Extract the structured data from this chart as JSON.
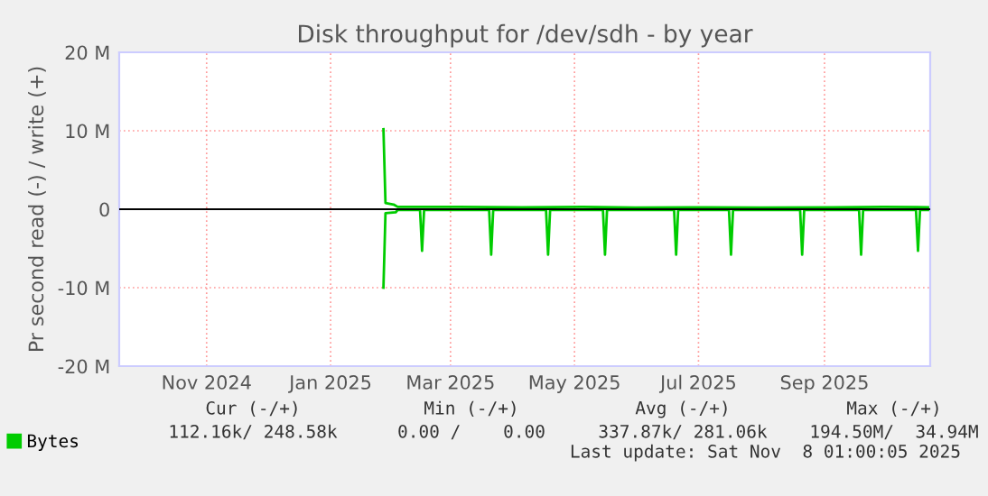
{
  "chart_data": {
    "type": "line",
    "title": "Disk throughput for /dev/sdh - by year",
    "ylabel": "Pr second read (-) / write (+)",
    "xlim": [
      "2024-10-04",
      "2025-11-07"
    ],
    "xticks": [
      {
        "value": "2024-11-16",
        "label": "Nov 2024"
      },
      {
        "value": "2025-01-16",
        "label": "Jan 2025"
      },
      {
        "value": "2025-03-16",
        "label": "Mar 2025"
      },
      {
        "value": "2025-05-16",
        "label": "May 2025"
      },
      {
        "value": "2025-07-16",
        "label": "Jul 2025"
      },
      {
        "value": "2025-09-16",
        "label": "Sep 2025"
      }
    ],
    "ylim": [
      -20000000,
      20000000
    ],
    "yticks": [
      {
        "value": -20000000,
        "label": "-20 M"
      },
      {
        "value": -10000000,
        "label": "-10 M"
      },
      0,
      {
        "value": 10000000,
        "label": "10 M"
      },
      {
        "value": 20000000,
        "label": "20 M"
      }
    ],
    "series": [
      {
        "name": "Bytes",
        "color": "#00cc00",
        "x": [
          "2025-02-11",
          "2025-02-12",
          "2025-02-16",
          "2025-02-18",
          "2025-03-15",
          "2025-04-20",
          "2025-05-20",
          "2025-06-15",
          "2025-07-20",
          "2025-08-15",
          "2025-09-20",
          "2025-10-15",
          "2025-11-07"
        ],
        "values": [
          10200000,
          800000,
          600000,
          300000,
          300000,
          250000,
          300000,
          200000,
          250000,
          200000,
          250000,
          300000,
          250000
        ]
      },
      {
        "color": "#00cc00",
        "x": [
          "2025-02-11",
          "2025-02-12",
          "2025-02-17",
          "2025-02-18",
          "2025-03-01",
          "2025-03-02",
          "2025-03-03",
          "2025-04-04",
          "2025-04-05",
          "2025-04-06",
          "2025-05-02",
          "2025-05-03",
          "2025-05-04",
          "2025-05-30",
          "2025-05-31",
          "2025-06-01",
          "2025-07-04",
          "2025-07-05",
          "2025-07-06",
          "2025-07-31",
          "2025-08-01",
          "2025-08-02",
          "2025-09-04",
          "2025-09-05",
          "2025-09-06",
          "2025-10-03",
          "2025-10-04",
          "2025-10-05",
          "2025-10-31",
          "2025-11-01",
          "2025-11-02",
          "2025-11-07"
        ],
        "values": [
          -10000000,
          -500000,
          -400000,
          -100000,
          -100000,
          -5300000,
          -100000,
          -100000,
          -5800000,
          -100000,
          -100000,
          -5800000,
          -100000,
          -100000,
          -5800000,
          -100000,
          -100000,
          -5800000,
          -100000,
          -100000,
          -5800000,
          -100000,
          -100000,
          -5800000,
          -100000,
          -100000,
          -5800000,
          -100000,
          -100000,
          -5300000,
          -100000,
          -100000
        ]
      }
    ],
    "ref_lines": [
      {
        "axis": "y",
        "value": 0,
        "color": "#000000"
      }
    ],
    "grid": true,
    "legend": "bottom left",
    "annotations": [
      "Cur (-/+)",
      "Min (-/+)",
      "Avg (-/+)",
      "Max (-/+)",
      "112.16k/ 248.58k",
      "0.00 /    0.00",
      "337.87k/ 281.06k",
      "194.50M/  34.94M",
      "Last update: Sat Nov  8 01:00:05 2025"
    ]
  }
}
